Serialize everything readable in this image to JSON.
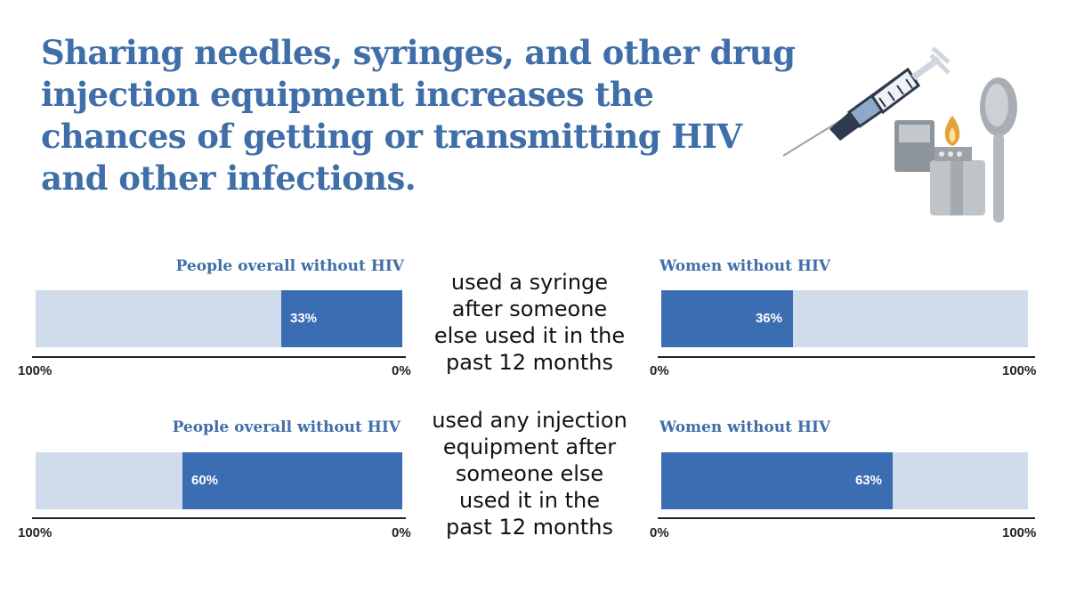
{
  "title": "Sharing needles, syringes, and other drug injection equipment increases the chances of getting or transmitting HIV and other infections.",
  "colors": {
    "title": "#3f6ea8",
    "bar_fill": "#3b6db3",
    "bar_track": "#d0dcec"
  },
  "illustration": [
    "syringe-icon",
    "lighter-icon",
    "spoon-icon"
  ],
  "chart_data": [
    {
      "type": "bar",
      "orientation": "horizontal",
      "direction": "right-to-left",
      "title": "People overall without HIV",
      "measure": "used a syringe after someone else used it in the past 12 months",
      "values": [
        33
      ],
      "value_label": "33%",
      "xlim": [
        0,
        100
      ],
      "tick_min": "0%",
      "tick_max": "100%"
    },
    {
      "type": "bar",
      "orientation": "horizontal",
      "direction": "left-to-right",
      "title": "Women without HIV",
      "measure": "used a syringe after someone else used it in the past 12 months",
      "values": [
        36
      ],
      "value_label": "36%",
      "xlim": [
        0,
        100
      ],
      "tick_min": "0%",
      "tick_max": "100%"
    },
    {
      "type": "bar",
      "orientation": "horizontal",
      "direction": "right-to-left",
      "title": "People overall without HIV",
      "measure": "used any injection equipment after someone else used it in the past 12 months",
      "values": [
        60
      ],
      "value_label": "60%",
      "xlim": [
        0,
        100
      ],
      "tick_min": "0%",
      "tick_max": "100%"
    },
    {
      "type": "bar",
      "orientation": "horizontal",
      "direction": "left-to-right",
      "title": "Women without HIV",
      "measure": "used any injection equipment after someone else used it in the past 12 months",
      "values": [
        63
      ],
      "value_label": "63%",
      "xlim": [
        0,
        100
      ],
      "tick_min": "0%",
      "tick_max": "100%"
    }
  ],
  "middle_labels": [
    [
      "used a syringe",
      "after someone",
      "else used it in the",
      "past 12 months"
    ],
    [
      "used any injection",
      "equipment after",
      "someone else",
      "used it in the",
      "past 12 months"
    ]
  ]
}
